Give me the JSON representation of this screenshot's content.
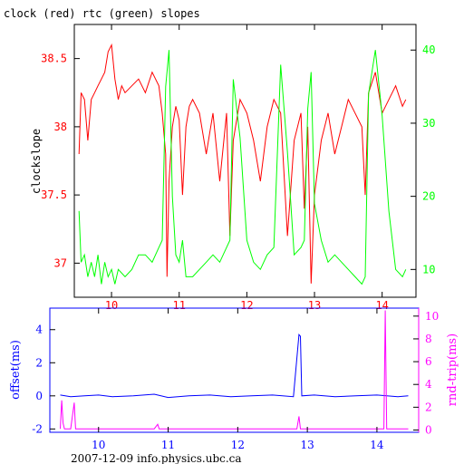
{
  "title": "clock (red) rtc (green) slopes",
  "footer": "2007-12-09 info.physics.ubc.ca",
  "colors": {
    "clock": "#ff0000",
    "rtc": "#00ff00",
    "offset": "#0000ff",
    "rtt": "#ff00ff",
    "axis": "#000000"
  },
  "chart_data": [
    {
      "type": "line",
      "title": "clock (red) rtc (green) slopes",
      "ylabel": "clockslope",
      "ylabel_right": "",
      "xlim": [
        9.45,
        14.5
      ],
      "ylim_left": [
        36.75,
        38.75
      ],
      "ylim_right": [
        6.2,
        43.5
      ],
      "x_ticks": [
        10,
        11,
        12,
        13,
        14
      ],
      "y_ticks_left": [
        "37",
        "37.5",
        "38",
        "38.5"
      ],
      "y_ticks_right": [
        "10",
        "20",
        "30",
        "40"
      ],
      "series": [
        {
          "axis": "left",
          "color": "#ff0000",
          "x": [
            9.52,
            9.55,
            9.6,
            9.65,
            9.7,
            9.75,
            9.8,
            9.85,
            9.9,
            9.95,
            10.0,
            10.05,
            10.1,
            10.15,
            10.2,
            10.3,
            10.4,
            10.5,
            10.6,
            10.7,
            10.75,
            10.8,
            10.82,
            10.85,
            10.9,
            10.95,
            11.0,
            11.05,
            11.1,
            11.15,
            11.2,
            11.3,
            11.4,
            11.5,
            11.6,
            11.7,
            11.75,
            11.8,
            11.9,
            12.0,
            12.1,
            12.2,
            12.3,
            12.4,
            12.5,
            12.6,
            12.7,
            12.8,
            12.85,
            12.9,
            12.95,
            13.0,
            13.1,
            13.2,
            13.3,
            13.4,
            13.5,
            13.6,
            13.7,
            13.75,
            13.8,
            13.9,
            14.0,
            14.1,
            14.2,
            14.3,
            14.35
          ],
          "y": [
            37.8,
            38.25,
            38.2,
            37.9,
            38.2,
            38.25,
            38.3,
            38.35,
            38.4,
            38.55,
            38.6,
            38.35,
            38.2,
            38.3,
            38.25,
            38.3,
            38.35,
            38.25,
            38.4,
            38.3,
            38.1,
            37.8,
            36.9,
            37.6,
            38.0,
            38.15,
            38.05,
            37.5,
            38.0,
            38.15,
            38.2,
            38.1,
            37.8,
            38.1,
            37.6,
            38.1,
            37.2,
            37.9,
            38.2,
            38.1,
            37.9,
            37.6,
            38.0,
            38.2,
            38.1,
            37.2,
            37.9,
            38.1,
            37.4,
            38.0,
            36.85,
            37.5,
            37.9,
            38.1,
            37.8,
            38.0,
            38.2,
            38.1,
            38.0,
            37.5,
            38.25,
            38.4,
            38.1,
            38.2,
            38.3,
            38.15,
            38.2
          ]
        },
        {
          "axis": "right",
          "color": "#00ff00",
          "x": [
            9.52,
            9.55,
            9.6,
            9.65,
            9.7,
            9.75,
            9.8,
            9.85,
            9.9,
            9.95,
            10.0,
            10.05,
            10.1,
            10.2,
            10.3,
            10.4,
            10.5,
            10.6,
            10.7,
            10.75,
            10.8,
            10.85,
            10.9,
            10.95,
            11.0,
            11.05,
            11.1,
            11.2,
            11.3,
            11.4,
            11.5,
            11.6,
            11.7,
            11.75,
            11.8,
            11.9,
            12.0,
            12.1,
            12.2,
            12.3,
            12.4,
            12.5,
            12.6,
            12.7,
            12.8,
            12.85,
            12.9,
            12.95,
            13.0,
            13.1,
            13.2,
            13.3,
            13.4,
            13.5,
            13.6,
            13.7,
            13.75,
            13.8,
            13.9,
            14.0,
            14.1,
            14.2,
            14.3,
            14.35
          ],
          "y": [
            18,
            11,
            12,
            9,
            11,
            9,
            12,
            8,
            11,
            9,
            10,
            8,
            10,
            9,
            10,
            12,
            12,
            11,
            13,
            14,
            35,
            40,
            20,
            12,
            11,
            14,
            9,
            9,
            10,
            11,
            12,
            11,
            13,
            14,
            36,
            28,
            14,
            11,
            10,
            12,
            13,
            38,
            26,
            12,
            13,
            14,
            32,
            37,
            19,
            14,
            11,
            12,
            11,
            10,
            9,
            8,
            9,
            34,
            40,
            31,
            18,
            10,
            9,
            10
          ]
        }
      ]
    },
    {
      "type": "line",
      "ylabel": "offset(ms)",
      "ylabel_right": "rnd-trip(ms)",
      "xlim": [
        9.3,
        14.6
      ],
      "ylim_left": [
        -2.2,
        5.3
      ],
      "ylim_right": [
        -0.2,
        10.7
      ],
      "x_ticks": [
        10,
        11,
        12,
        13,
        14
      ],
      "y_ticks_left": [
        "-2",
        "0",
        "2",
        "4"
      ],
      "y_ticks_right": [
        "0",
        "2",
        "4",
        "6",
        "8",
        "10"
      ],
      "series": [
        {
          "axis": "left",
          "color": "#0000ff",
          "x": [
            9.45,
            9.6,
            9.8,
            10.0,
            10.2,
            10.5,
            10.8,
            11.0,
            11.3,
            11.6,
            11.9,
            12.2,
            12.5,
            12.8,
            12.88,
            12.9,
            12.92,
            13.1,
            13.4,
            13.7,
            14.0,
            14.3,
            14.45
          ],
          "y": [
            0.05,
            -0.05,
            0.0,
            0.05,
            -0.05,
            0.0,
            0.1,
            -0.1,
            0.0,
            0.05,
            -0.05,
            0.0,
            0.05,
            -0.05,
            3.7,
            3.6,
            0.0,
            0.05,
            -0.05,
            0.0,
            0.05,
            -0.05,
            0.0
          ]
        },
        {
          "axis": "right",
          "color": "#ff00ff",
          "x": [
            9.45,
            9.47,
            9.49,
            9.51,
            9.6,
            9.65,
            9.67,
            9.69,
            9.8,
            10.5,
            10.8,
            10.85,
            10.87,
            10.9,
            11.5,
            12.2,
            12.85,
            12.88,
            12.9,
            12.92,
            13.6,
            14.1,
            14.12,
            14.14,
            14.16,
            14.45
          ],
          "y": [
            0.1,
            2.6,
            0.6,
            0.1,
            0.1,
            2.4,
            0.1,
            0.1,
            0.1,
            0.1,
            0.1,
            0.5,
            0.1,
            0.1,
            0.1,
            0.1,
            0.1,
            1.2,
            0.1,
            0.1,
            0.1,
            0.1,
            10.5,
            0.1,
            0.1,
            0.1
          ]
        }
      ]
    }
  ]
}
